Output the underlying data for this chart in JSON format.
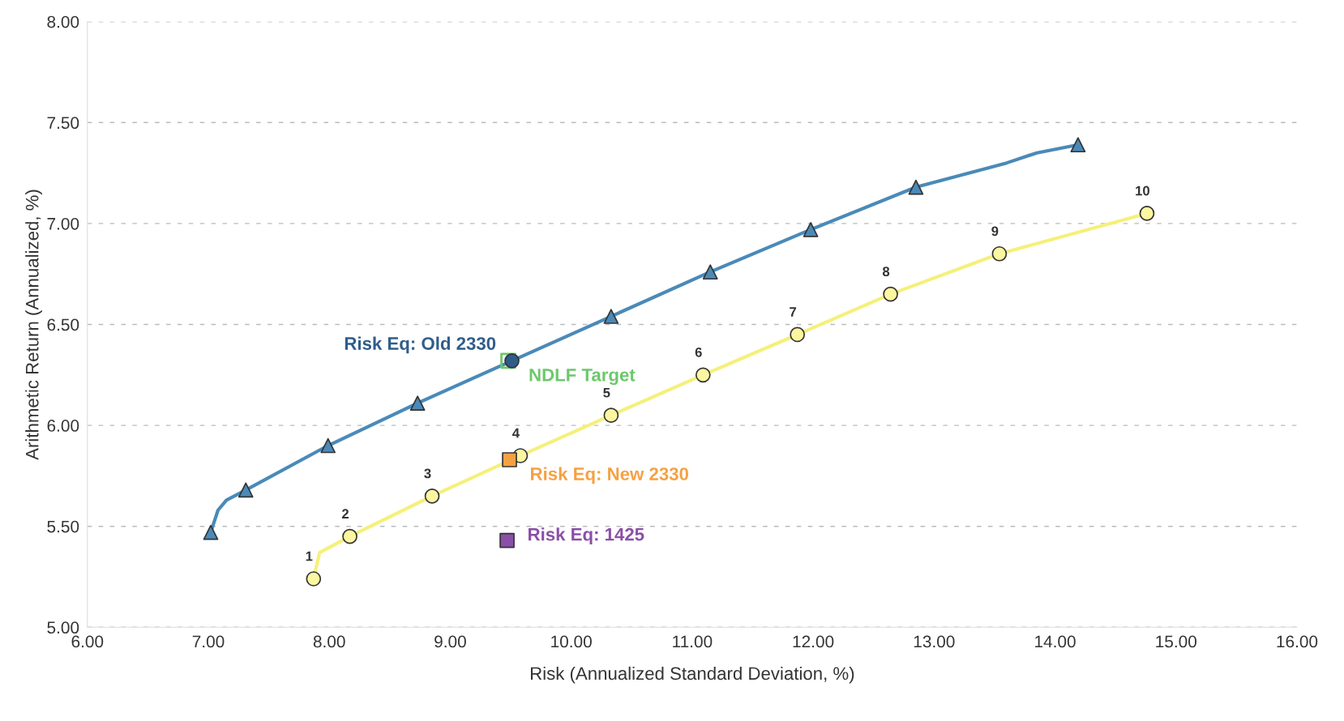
{
  "chart_data": {
    "type": "line",
    "xlabel": "Risk (Annualized Standard Deviation, %)",
    "ylabel": "Arithmetic Return (Annualized, %)",
    "xlim": [
      6,
      16
    ],
    "ylim": [
      5,
      8
    ],
    "xticks": [
      {
        "value": 6,
        "label": "6.00"
      },
      {
        "value": 7,
        "label": "7.00"
      },
      {
        "value": 8,
        "label": "8.00"
      },
      {
        "value": 9,
        "label": "9.00"
      },
      {
        "value": 10,
        "label": "10.00"
      },
      {
        "value": 11,
        "label": "11.00"
      },
      {
        "value": 12,
        "label": "12.00"
      },
      {
        "value": 13,
        "label": "13.00"
      },
      {
        "value": 14,
        "label": "14.00"
      },
      {
        "value": 15,
        "label": "15.00"
      },
      {
        "value": 16,
        "label": "16.00"
      }
    ],
    "yticks": [
      {
        "value": 5,
        "label": "5.00"
      },
      {
        "value": 5.5,
        "label": "5.50"
      },
      {
        "value": 6,
        "label": "6.00"
      },
      {
        "value": 6.5,
        "label": "6.50"
      },
      {
        "value": 7,
        "label": "7.00"
      },
      {
        "value": 7.5,
        "label": "7.50"
      },
      {
        "value": 8,
        "label": "8.00"
      }
    ],
    "grid": "y",
    "annotations": [
      {
        "text": "1",
        "x": 7.87,
        "y": 5.24
      },
      {
        "text": "2",
        "x": 8.17,
        "y": 5.45
      },
      {
        "text": "3",
        "x": 8.85,
        "y": 5.65
      },
      {
        "text": "4",
        "x": 9.58,
        "y": 5.85
      },
      {
        "text": "5",
        "x": 10.33,
        "y": 6.05
      },
      {
        "text": "6",
        "x": 11.09,
        "y": 6.25
      },
      {
        "text": "7",
        "x": 11.87,
        "y": 6.45
      },
      {
        "text": "8",
        "x": 12.64,
        "y": 6.65
      },
      {
        "text": "9",
        "x": 13.54,
        "y": 6.85
      },
      {
        "text": "10",
        "x": 14.76,
        "y": 7.05
      }
    ],
    "series": [
      {
        "color": "#4a8ab8",
        "marker": "none",
        "x": [
          7.02,
          7.08,
          7.15,
          7.31,
          7.99,
          8.73,
          9.51,
          10.33,
          11.15,
          11.98,
          12.85,
          13.6,
          13.85,
          14.19
        ],
        "values": [
          5.47,
          5.58,
          5.63,
          5.68,
          5.9,
          6.11,
          6.32,
          6.54,
          6.76,
          6.97,
          7.18,
          7.3,
          7.35,
          7.39
        ]
      },
      {
        "type": "scatter",
        "color": "#4a8ab8",
        "marker": "triangle",
        "x": [
          7.02,
          7.31,
          7.99,
          8.73,
          10.33,
          11.15,
          11.98,
          12.85,
          14.19
        ],
        "values": [
          5.47,
          5.68,
          5.9,
          6.11,
          6.54,
          6.76,
          6.97,
          7.18,
          7.39
        ]
      },
      {
        "color": "#f5f07a",
        "marker": "none",
        "x": [
          7.87,
          7.92,
          8.17,
          8.85,
          9.58,
          10.33,
          11.09,
          11.87,
          12.64,
          13.54,
          14.76
        ],
        "values": [
          5.24,
          5.37,
          5.45,
          5.65,
          5.85,
          6.05,
          6.25,
          6.45,
          6.65,
          6.85,
          7.05
        ]
      },
      {
        "type": "scatter",
        "color": "#fdf6a0",
        "marker": "circle",
        "x": [
          7.87,
          8.17,
          8.85,
          9.58,
          10.33,
          11.09,
          11.87,
          12.64,
          13.54,
          14.76
        ],
        "values": [
          5.24,
          5.45,
          5.65,
          5.85,
          6.05,
          6.25,
          6.45,
          6.65,
          6.85,
          7.05
        ]
      },
      {
        "type": "scatter",
        "name": "NDLF Target",
        "color": "#6cc86c",
        "marker": "square",
        "x": [
          9.48
        ],
        "values": [
          6.32
        ]
      },
      {
        "type": "scatter",
        "name": "Risk Eq: Old 2330",
        "color": "#2f5d8a",
        "marker": "circle",
        "x": [
          9.51
        ],
        "values": [
          6.32
        ]
      },
      {
        "type": "scatter",
        "name": "Risk Eq: New 2330",
        "color": "#f5a142",
        "marker": "square",
        "x": [
          9.49
        ],
        "values": [
          5.83
        ]
      },
      {
        "type": "scatter",
        "name": "Risk Eq: 1425",
        "color": "#8a4fa8",
        "marker": "square",
        "x": [
          9.47
        ],
        "values": [
          5.43
        ]
      }
    ]
  }
}
